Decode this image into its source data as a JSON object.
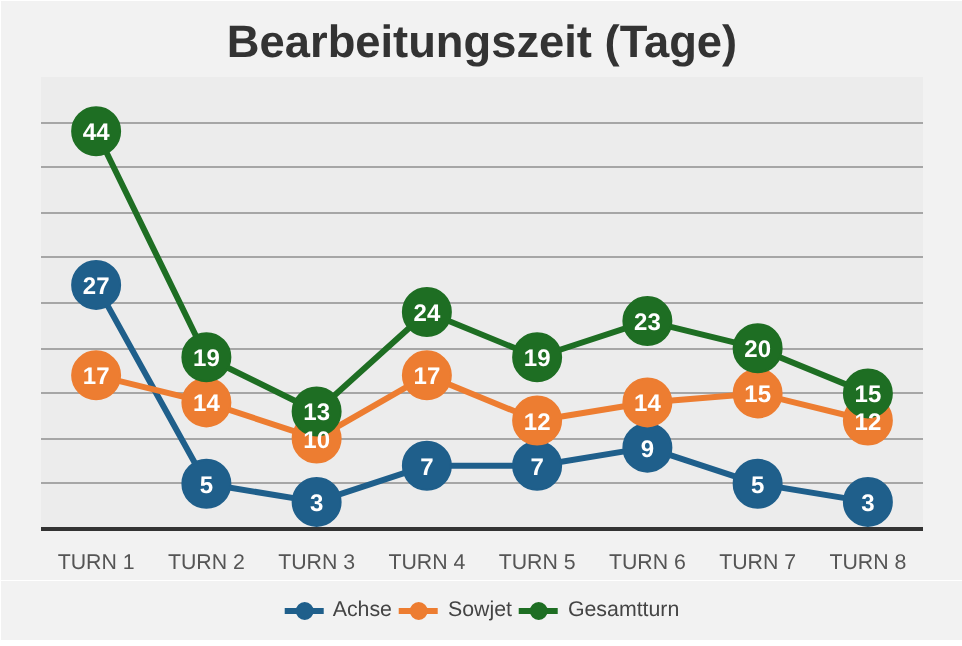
{
  "chart_data": {
    "type": "line",
    "title": "Bearbeitungszeit (Tage)",
    "categories": [
      "TURN 1",
      "TURN 2",
      "TURN 3",
      "TURN 4",
      "TURN 5",
      "TURN 6",
      "TURN 7",
      "TURN 8"
    ],
    "series": [
      {
        "name": "Achse",
        "color": "#1f5f8b",
        "values": [
          27,
          5,
          3,
          7,
          7,
          9,
          5,
          3
        ]
      },
      {
        "name": "Sowjet",
        "color": "#ed7d31",
        "values": [
          17,
          14,
          10,
          17,
          12,
          14,
          15,
          12
        ]
      },
      {
        "name": "Gesamtturn",
        "color": "#1e6e23",
        "values": [
          44,
          19,
          13,
          24,
          19,
          23,
          20,
          15
        ]
      }
    ],
    "ylim": [
      0,
      50
    ],
    "yticks": [
      {
        "value": 0,
        "label": null
      },
      {
        "value": 5,
        "label": null
      },
      {
        "value": 10,
        "label": null
      },
      {
        "value": 15,
        "label": null
      },
      {
        "value": 20,
        "label": null
      },
      {
        "value": 25,
        "label": null
      },
      {
        "value": 30,
        "label": null
      },
      {
        "value": 35,
        "label": null
      },
      {
        "value": 40,
        "label": null
      },
      {
        "value": 45,
        "label": null
      },
      {
        "value": 50,
        "label": null
      }
    ],
    "tick_labels": "x",
    "grid": "y",
    "legend": "bottom",
    "marker": "circle",
    "line_style": "solid",
    "data_labels": true
  }
}
